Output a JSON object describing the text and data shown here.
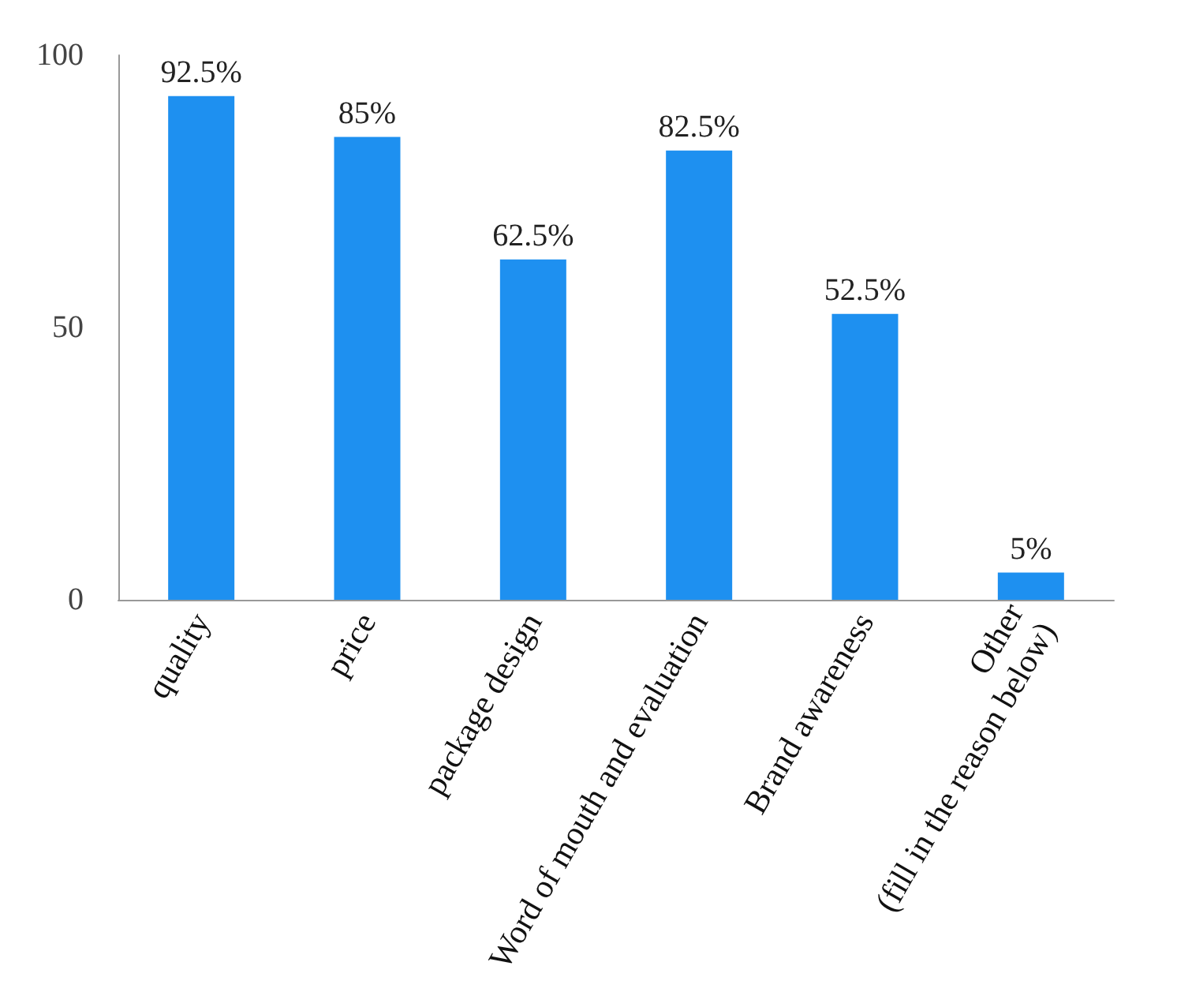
{
  "chart_data": {
    "type": "bar",
    "categories": [
      "quality",
      "price",
      "package design",
      "Word of mouth and evaluation",
      "Brand awareness",
      "Other\n(fill in the reason below)"
    ],
    "values": [
      92.5,
      85,
      62.5,
      82.5,
      52.5,
      5
    ],
    "value_labels": [
      "92.5%",
      "85%",
      "62.5%",
      "82.5%",
      "52.5%",
      "5%"
    ],
    "color": "#1e90f0",
    "ylim": [
      0,
      100
    ],
    "yticks": [
      0,
      50,
      100
    ],
    "grid": false
  }
}
